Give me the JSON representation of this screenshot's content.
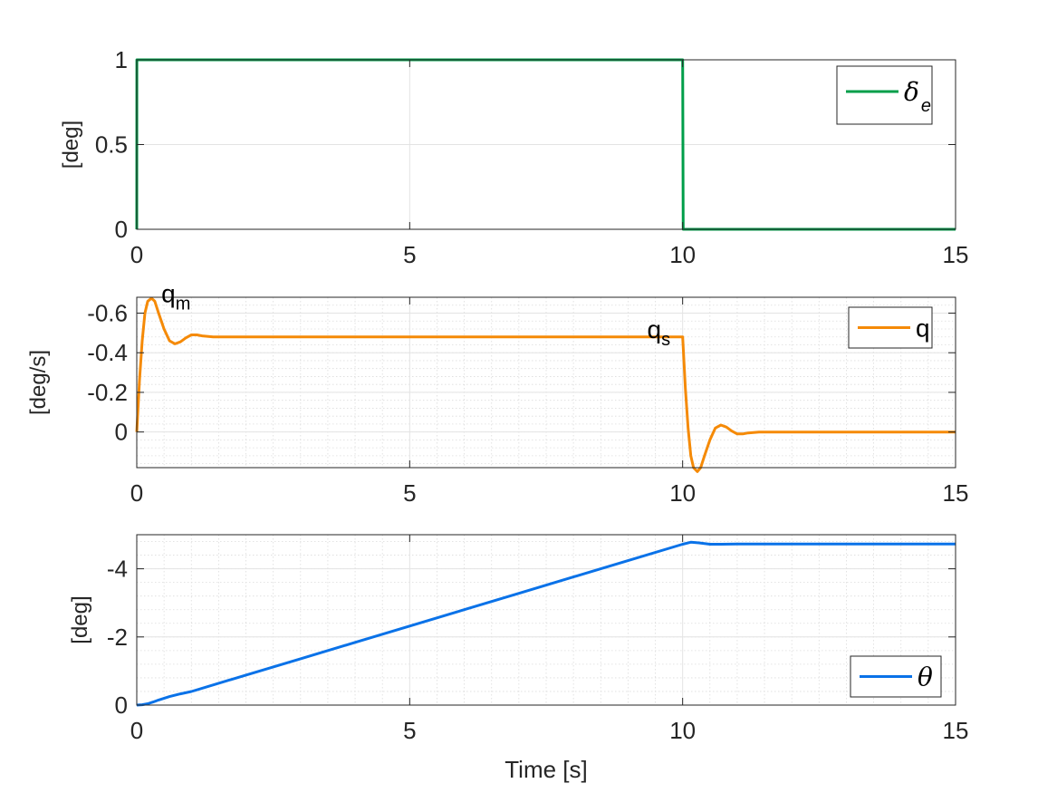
{
  "chart_data": [
    {
      "type": "line",
      "ylabel": "[deg]",
      "xlabel": "",
      "xlim": [
        0,
        15
      ],
      "ylim": [
        0,
        1
      ],
      "y_reversed": false,
      "xticks": [
        "0",
        "5",
        "10",
        "15"
      ],
      "yticks": [
        {
          "v": 0,
          "label": "0"
        },
        {
          "v": 0.5,
          "label": "0.5"
        },
        {
          "v": 1,
          "label": "1"
        }
      ],
      "grid": "major",
      "legend_position": "top-right",
      "series": [
        {
          "name": "δ",
          "name_sub": "e",
          "color": "#009E49",
          "x": [
            0,
            0.001,
            10.0,
            10.01,
            15
          ],
          "y": [
            0,
            1,
            1,
            0,
            0
          ]
        }
      ],
      "annotations": []
    },
    {
      "type": "line",
      "ylabel": "[deg/s]",
      "xlabel": "",
      "xlim": [
        0,
        15
      ],
      "ylim": [
        0.18,
        -0.68
      ],
      "y_reversed": true,
      "xticks": [
        "0",
        "5",
        "10",
        "15"
      ],
      "yticks": [
        {
          "v": 0,
          "label": "0"
        },
        {
          "v": -0.2,
          "label": "-0.2"
        },
        {
          "v": -0.4,
          "label": "-0.4"
        },
        {
          "v": -0.6,
          "label": "-0.6"
        }
      ],
      "grid": "major-minor",
      "legend_position": "top-right",
      "series": [
        {
          "name": "q",
          "color": "#F58A07",
          "x": [
            0,
            0.05,
            0.1,
            0.15,
            0.2,
            0.27,
            0.33,
            0.4,
            0.5,
            0.6,
            0.7,
            0.8,
            0.9,
            1.0,
            1.1,
            1.2,
            1.4,
            1.6,
            2,
            10.0,
            10.05,
            10.1,
            10.15,
            10.2,
            10.27,
            10.33,
            10.4,
            10.5,
            10.6,
            10.7,
            10.8,
            10.9,
            11.0,
            11.1,
            11.2,
            11.4,
            11.6,
            12,
            15
          ],
          "y": [
            0,
            -0.26,
            -0.46,
            -0.6,
            -0.66,
            -0.675,
            -0.66,
            -0.6,
            -0.52,
            -0.46,
            -0.445,
            -0.455,
            -0.475,
            -0.49,
            -0.49,
            -0.485,
            -0.48,
            -0.48,
            -0.48,
            -0.48,
            -0.22,
            -0.02,
            0.12,
            0.18,
            0.2,
            0.18,
            0.12,
            0.04,
            -0.02,
            -0.035,
            -0.025,
            -0.005,
            0.01,
            0.01,
            0.005,
            0.0,
            0.0,
            0.0,
            0.0
          ]
        }
      ],
      "annotations": [
        {
          "text": "q",
          "sub": "m",
          "x": 0.45,
          "y": -0.7
        },
        {
          "text": "q",
          "sub": "s",
          "x": 9.35,
          "y": -0.52
        }
      ]
    },
    {
      "type": "line",
      "ylabel": "[deg]",
      "xlabel": "Time [s]",
      "xlim": [
        0,
        15
      ],
      "ylim": [
        0,
        -5
      ],
      "y_reversed": true,
      "xticks": [
        "0",
        "5",
        "10",
        "15"
      ],
      "yticks": [
        {
          "v": 0,
          "label": "0"
        },
        {
          "v": -2,
          "label": "-2"
        },
        {
          "v": -4,
          "label": "-4"
        }
      ],
      "grid": "major-minor",
      "legend_position": "bottom-right",
      "series": [
        {
          "name": "θ",
          "color": "#0A72E8",
          "x": [
            0,
            0.1,
            0.2,
            0.3,
            0.4,
            0.6,
            0.8,
            1.0,
            2,
            3,
            4,
            5,
            6,
            7,
            8,
            9,
            10.0,
            10.15,
            10.3,
            10.5,
            10.7,
            11,
            15
          ],
          "y": [
            0,
            -0.01,
            -0.04,
            -0.09,
            -0.15,
            -0.25,
            -0.33,
            -0.4,
            -0.88,
            -1.36,
            -1.84,
            -2.32,
            -2.8,
            -3.28,
            -3.76,
            -4.24,
            -4.72,
            -4.78,
            -4.76,
            -4.72,
            -4.72,
            -4.73,
            -4.73
          ]
        }
      ],
      "annotations": []
    }
  ]
}
